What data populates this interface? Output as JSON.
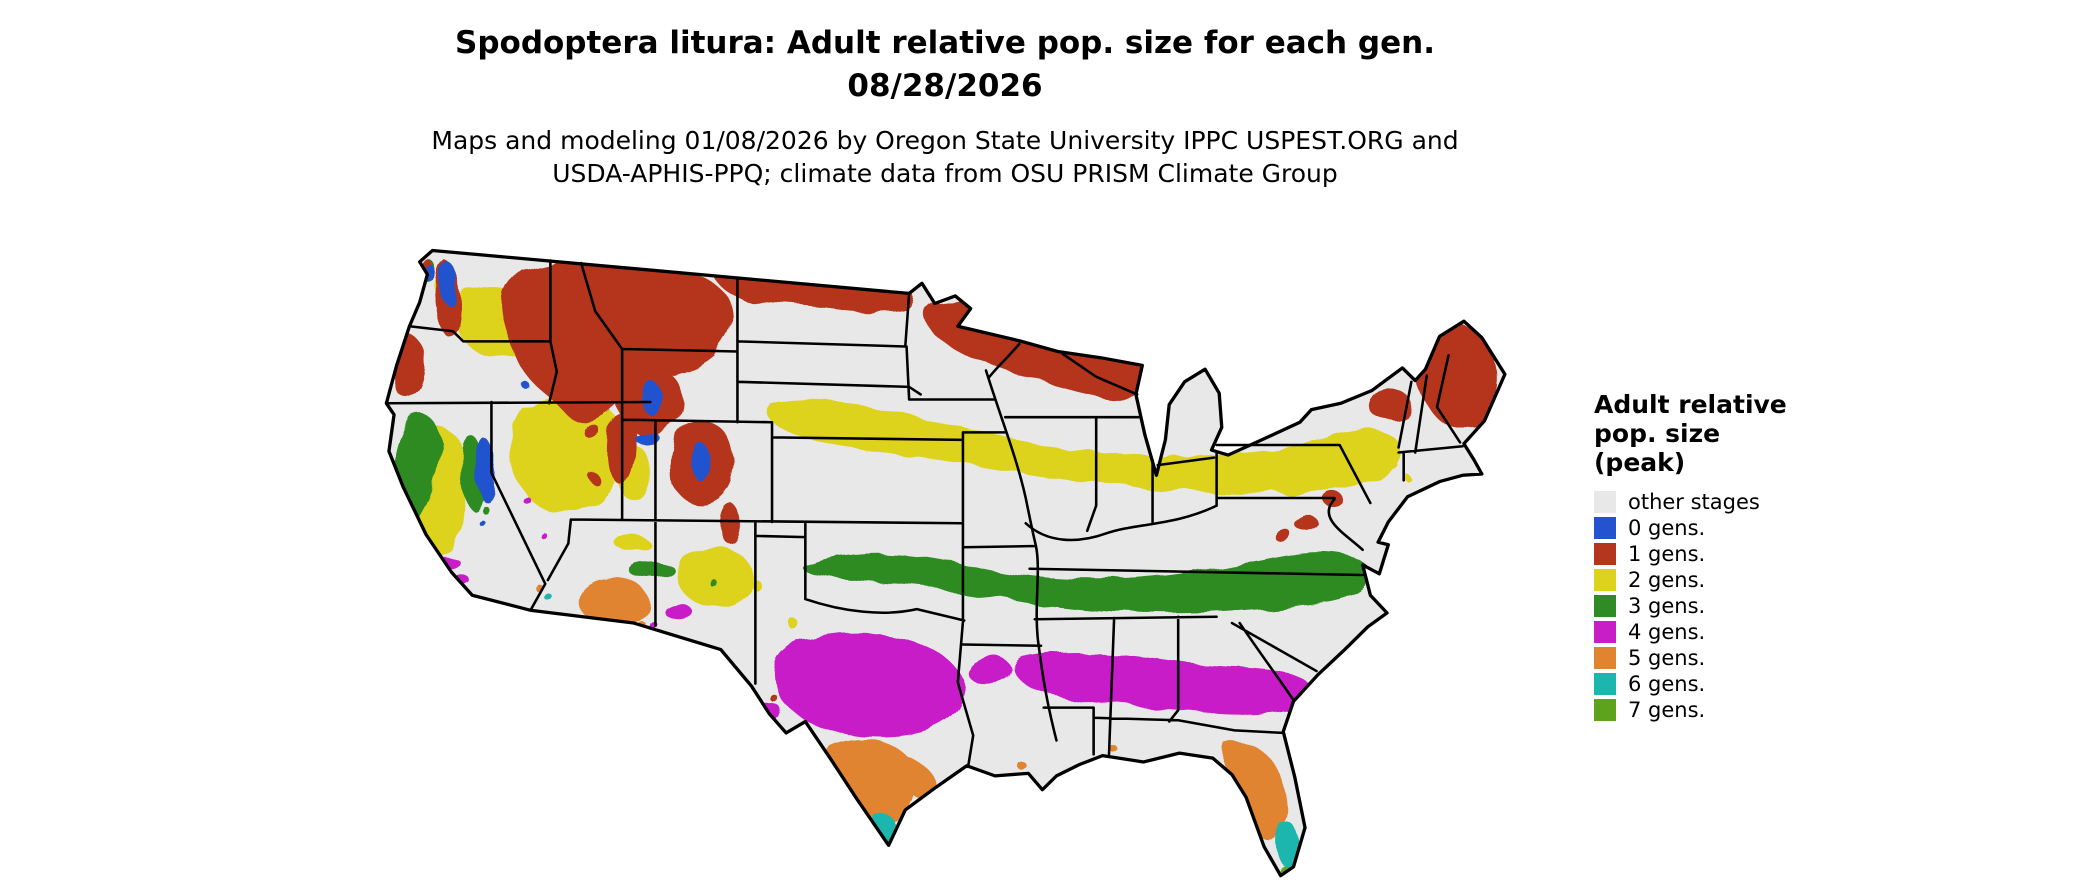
{
  "header": {
    "title": "Spodoptera litura: Adult relative pop. size for each gen.",
    "date": "08/28/2026",
    "subtitle_line1": "Maps and modeling 01/08/2026 by Oregon State University IPPC USPEST.ORG and",
    "subtitle_line2": "USDA-APHIS-PPQ; climate data from OSU PRISM Climate Group"
  },
  "legend": {
    "title_line1": "Adult relative",
    "title_line2": "pop. size",
    "title_line3": "(peak)",
    "items": [
      {
        "label": "other stages",
        "color": "#e8e8e8"
      },
      {
        "label": "0 gens.",
        "color": "#2353cf"
      },
      {
        "label": "1 gens.",
        "color": "#b5361f"
      },
      {
        "label": "2 gens.",
        "color": "#ddd21d"
      },
      {
        "label": "3 gens.",
        "color": "#2f8b24"
      },
      {
        "label": "4 gens.",
        "color": "#c81ec8"
      },
      {
        "label": "5 gens.",
        "color": "#e08430"
      },
      {
        "label": "6 gens.",
        "color": "#1db6ae"
      },
      {
        "label": "7 gens.",
        "color": "#5ea31c"
      }
    ]
  }
}
